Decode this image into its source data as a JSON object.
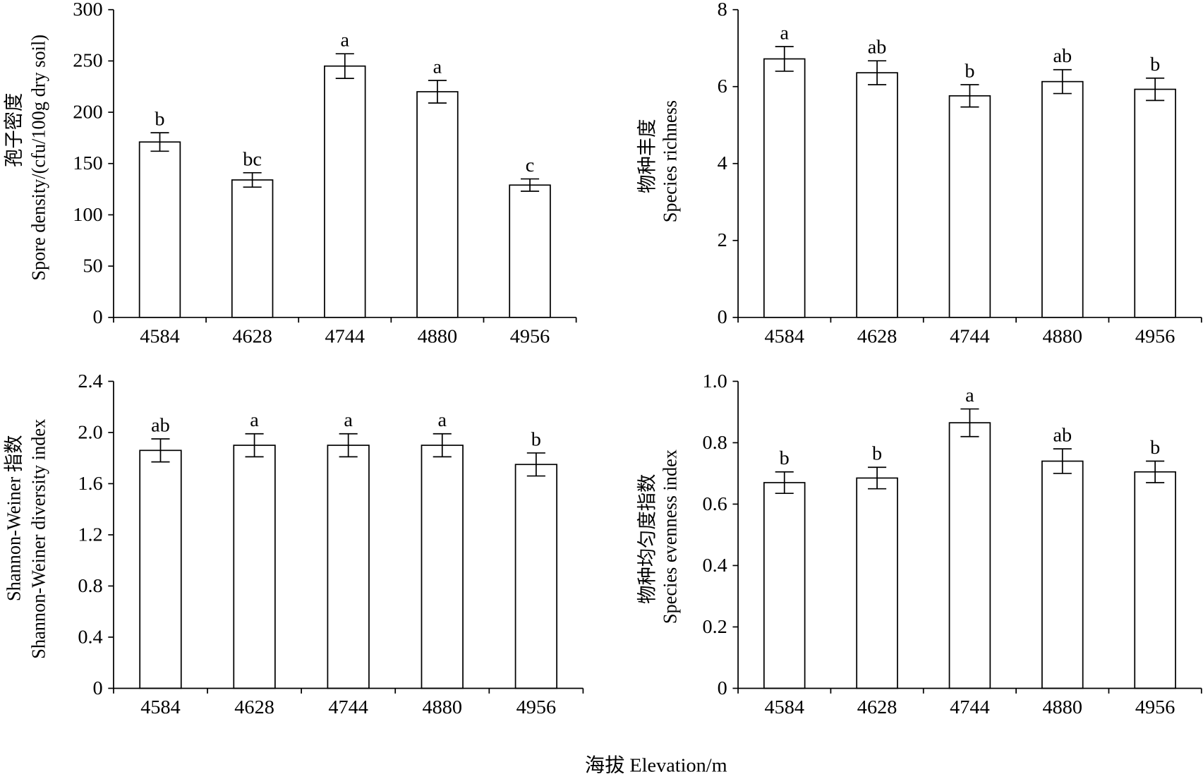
{
  "xlabel": "海拔 Elevation/m",
  "chart_data": [
    {
      "type": "bar",
      "categories": [
        "4584",
        "4628",
        "4744",
        "4880",
        "4956"
      ],
      "values": [
        171,
        134,
        245,
        220,
        129
      ],
      "error": [
        9,
        7,
        12,
        11,
        6
      ],
      "significance_letters": [
        "b",
        "bc",
        "a",
        "a",
        "c"
      ],
      "ylabel": [
        "孢子密度",
        "Spore density/(cfu/100g dry soil)"
      ],
      "ylim": [
        0,
        300
      ],
      "yticks": [
        "0",
        "50",
        "100",
        "150",
        "200",
        "250",
        "300"
      ],
      "grid": false,
      "bar_color": "#ffffff",
      "bar_edge_color": "#000000"
    },
    {
      "type": "bar",
      "categories": [
        "4584",
        "4628",
        "4744",
        "4880",
        "4956"
      ],
      "values": [
        6.72,
        6.36,
        5.76,
        6.13,
        5.93
      ],
      "error": [
        0.32,
        0.31,
        0.29,
        0.31,
        0.29
      ],
      "significance_letters": [
        "a",
        "ab",
        "b",
        "ab",
        "b"
      ],
      "ylabel": [
        "物种丰度",
        "Species richness"
      ],
      "ylim": [
        0,
        8
      ],
      "yticks": [
        "0",
        "2",
        "4",
        "6",
        "8"
      ],
      "grid": false,
      "bar_color": "#ffffff",
      "bar_edge_color": "#000000"
    },
    {
      "type": "bar",
      "categories": [
        "4584",
        "4628",
        "4744",
        "4880",
        "4956"
      ],
      "values": [
        1.86,
        1.9,
        1.9,
        1.9,
        1.75
      ],
      "error": [
        0.09,
        0.09,
        0.09,
        0.09,
        0.09
      ],
      "significance_letters": [
        "ab",
        "a",
        "a",
        "a",
        "b"
      ],
      "ylabel": [
        "Shannon-Weiner 指数",
        "Shannon-Weiner diversity index"
      ],
      "ylim": [
        0,
        2.4
      ],
      "yticks": [
        "0",
        "0.4",
        "0.8",
        "1.2",
        "1.6",
        "2.0",
        "2.4"
      ],
      "grid": false,
      "bar_color": "#ffffff",
      "bar_edge_color": "#000000"
    },
    {
      "type": "bar",
      "categories": [
        "4584",
        "4628",
        "4744",
        "4880",
        "4956"
      ],
      "values": [
        0.67,
        0.685,
        0.865,
        0.74,
        0.705
      ],
      "error": [
        0.035,
        0.035,
        0.045,
        0.04,
        0.035
      ],
      "significance_letters": [
        "b",
        "b",
        "a",
        "ab",
        "b"
      ],
      "ylabel": [
        "物种均匀度指数",
        "Species evenness index"
      ],
      "ylim": [
        0,
        1.0
      ],
      "yticks": [
        "0",
        "0.2",
        "0.4",
        "0.6",
        "0.8",
        "1.0"
      ],
      "grid": false,
      "bar_color": "#ffffff",
      "bar_edge_color": "#000000"
    }
  ]
}
